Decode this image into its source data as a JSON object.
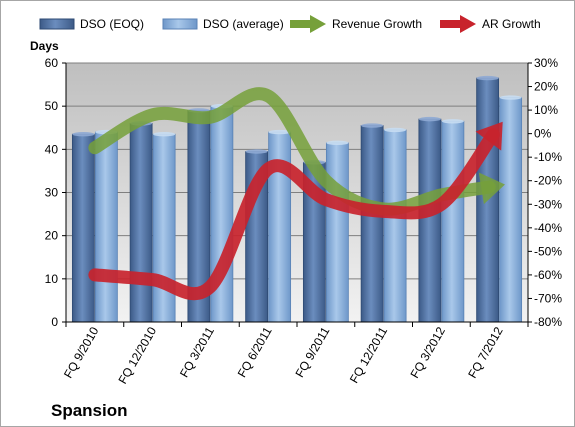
{
  "chart_data": {
    "type": "bar",
    "company": "Spansion",
    "ylabel_left": "Days",
    "categories": [
      "FQ 9/2010",
      "FQ 12/2010",
      "FQ 3/2011",
      "FQ 6/2011",
      "FQ 9/2011",
      "FQ 12/2011",
      "FQ 3/2012",
      "FQ 7/2012"
    ],
    "left_axis": {
      "ticks": [
        "0",
        "10",
        "20",
        "30",
        "40",
        "50",
        "60"
      ],
      "ylim": [
        0,
        60
      ]
    },
    "right_axis": {
      "ticks": [
        "30%",
        "20%",
        "10%",
        "0%",
        "-10%",
        "-20%",
        "-30%",
        "-40%",
        "-50%",
        "-60%",
        "-70%",
        "-80%"
      ],
      "ylim": [
        -80,
        30
      ]
    },
    "bar_series": [
      {
        "name": "DSO (EOQ)",
        "color": "#4F6F9F",
        "values": [
          43.5,
          46,
          49,
          39.5,
          37,
          45.5,
          47,
          56.5
        ]
      },
      {
        "name": "DSO (average)",
        "color": "#7FA7D4",
        "values": [
          44,
          43.5,
          50,
          44,
          41.5,
          44.5,
          46.5,
          52
        ]
      }
    ],
    "line_series": [
      {
        "name": "Revenue Growth",
        "color": "#76A03A",
        "axis": "right",
        "values": [
          -6,
          8,
          7,
          16,
          -20,
          -32,
          -26,
          -22
        ]
      },
      {
        "name": "AR Growth",
        "color": "#C8232C",
        "axis": "right",
        "values": [
          -60,
          -62,
          -65,
          -15,
          -28,
          -33,
          -30,
          3
        ]
      }
    ],
    "legend_position": "top",
    "grid": true
  }
}
